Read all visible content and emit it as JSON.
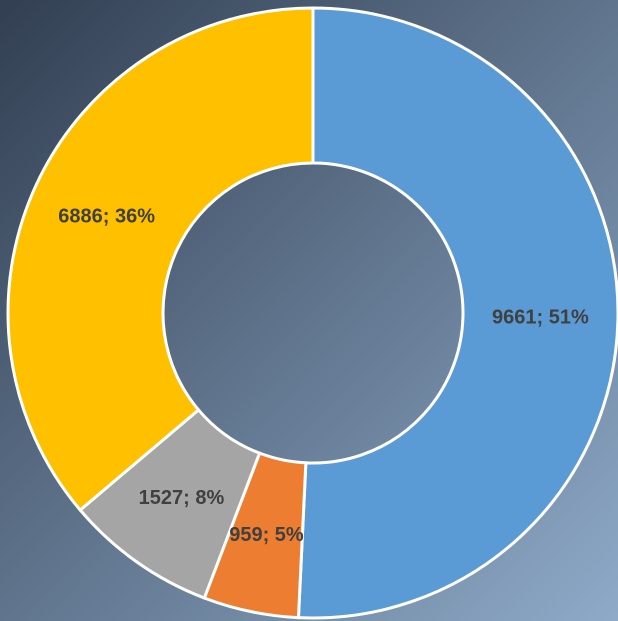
{
  "chart_data": {
    "type": "donut",
    "values": [
      9661,
      959,
      1527,
      6886
    ],
    "value_labels": [
      "9661; 51%",
      "959; 5%",
      "1527; 8%",
      "6886; 36%"
    ],
    "colors": [
      "#5b9bd5",
      "#ed7d31",
      "#a5a5a5",
      "#ffc000"
    ]
  }
}
